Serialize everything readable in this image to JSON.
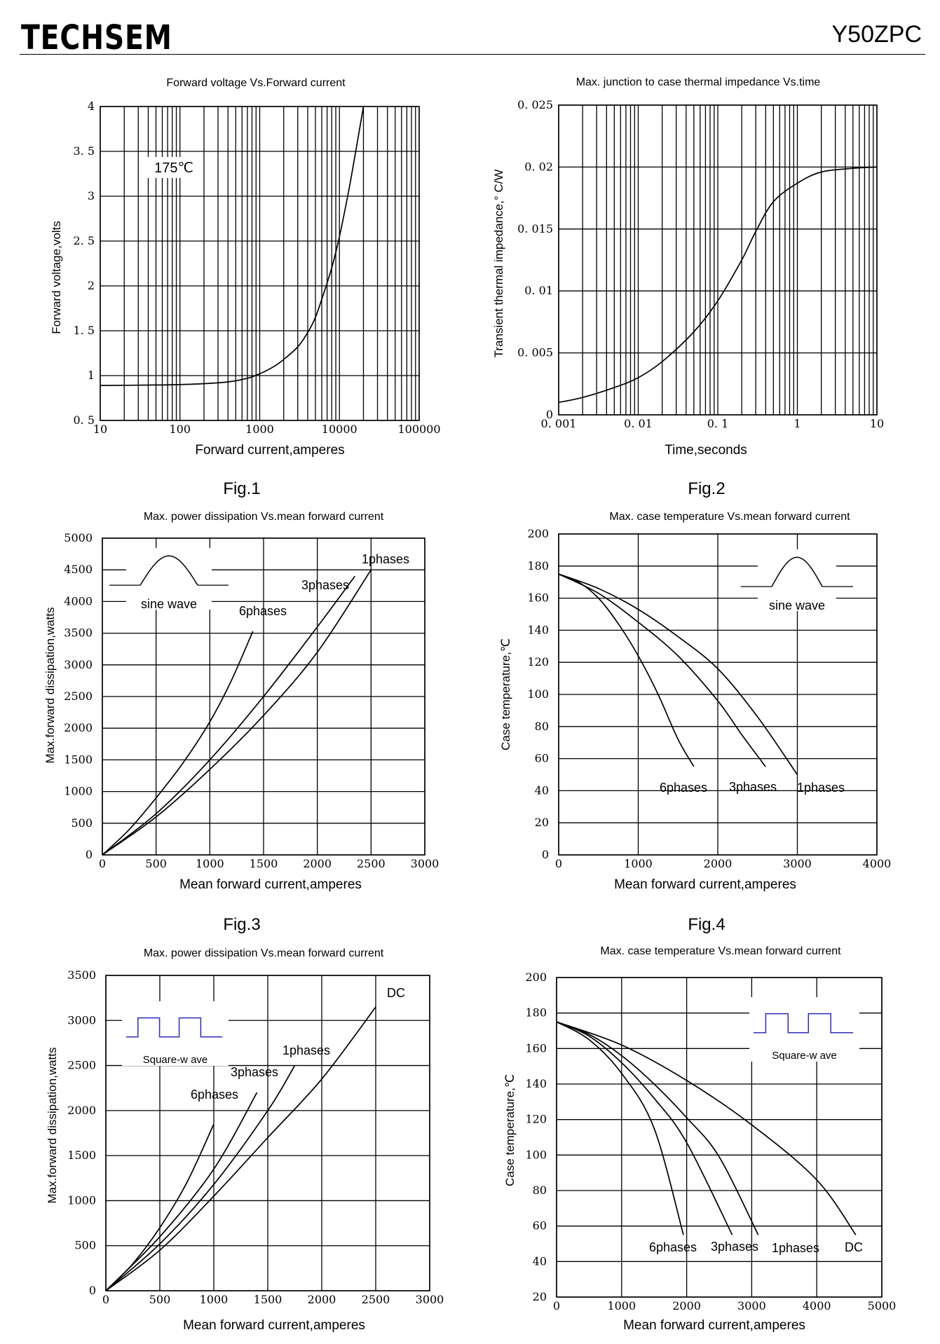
{
  "header": {
    "brand": "TECHSEM",
    "part_number": "Y50ZPC"
  },
  "figures": [
    "Fig.1",
    "Fig.2",
    "Fig.3",
    "Fig.4"
  ],
  "chart_data": [
    {
      "type": "line",
      "title": "Forward voltage Vs.Forward current",
      "xlabel": "Forward current,amperes",
      "ylabel": "Forward voltage,volts",
      "xscale": "log",
      "xlim": [
        10,
        100000
      ],
      "ylim": [
        0.5,
        4
      ],
      "xticks": [
        10,
        100,
        1000,
        10000,
        100000
      ],
      "xtick_labels": [
        "10",
        "100",
        "1000",
        "10000",
        "100000"
      ],
      "yticks": [
        0.5,
        1,
        1.5,
        2,
        2.5,
        3,
        3.5,
        4
      ],
      "ytick_labels": [
        "0. 5",
        "1",
        "1. 5",
        "2",
        "2. 5",
        "3",
        "3. 5",
        "4"
      ],
      "grid": true,
      "annotations": [
        {
          "text": "175℃",
          "x": 25,
          "y": 3.75
        }
      ],
      "series": [
        {
          "x": [
            10,
            50,
            100,
            200,
            400,
            700,
            1000,
            1500,
            2000,
            3000,
            4000,
            5000,
            6000,
            8000,
            10000,
            13000,
            16000,
            20000
          ],
          "y": [
            0.89,
            0.895,
            0.9,
            0.91,
            0.93,
            0.97,
            1.02,
            1.1,
            1.18,
            1.32,
            1.48,
            1.65,
            1.85,
            2.2,
            2.55,
            3.05,
            3.5,
            4.0
          ]
        }
      ]
    },
    {
      "type": "line",
      "title": "Max. junction to case thermal impedance Vs.time",
      "xlabel": "Time,seconds",
      "ylabel": "Transient thermal impedance,° C/W",
      "xscale": "log",
      "xlim": [
        0.001,
        10
      ],
      "ylim": [
        0,
        0.025
      ],
      "xticks": [
        0.001,
        0.01,
        0.1,
        1,
        10
      ],
      "xtick_labels": [
        "0. 001",
        "0. 01",
        "0. 1",
        "1",
        "10"
      ],
      "yticks": [
        0,
        0.005,
        0.01,
        0.015,
        0.02,
        0.025
      ],
      "ytick_labels": [
        "0",
        "0. 005",
        "0. 01",
        "0. 015",
        "0. 02",
        "0. 025"
      ],
      "grid": true,
      "series": [
        {
          "x": [
            0.001,
            0.002,
            0.005,
            0.01,
            0.02,
            0.05,
            0.1,
            0.2,
            0.3,
            0.5,
            1,
            2,
            5,
            10
          ],
          "y": [
            0.001,
            0.0014,
            0.0022,
            0.003,
            0.0043,
            0.0067,
            0.0092,
            0.0125,
            0.0148,
            0.0172,
            0.0187,
            0.0196,
            0.0199,
            0.02
          ]
        }
      ]
    },
    {
      "type": "line",
      "title": "Max. power dissipation Vs.mean forward current",
      "xlabel": "Mean forward current,amperes",
      "ylabel": "Max.forward dissipation,watts",
      "xlim": [
        0,
        3000
      ],
      "ylim": [
        0,
        5000
      ],
      "xticks": [
        0,
        500,
        1000,
        1500,
        2000,
        2500,
        3000
      ],
      "yticks": [
        0,
        500,
        1000,
        1500,
        2000,
        2500,
        3000,
        3500,
        4000,
        4500,
        5000
      ],
      "grid": true,
      "inset": {
        "label": "sine wave",
        "shape": "sine"
      },
      "series": [
        {
          "name": "6phases",
          "x": [
            0,
            250,
            500,
            750,
            1000,
            1200,
            1400
          ],
          "y": [
            0,
            400,
            900,
            1450,
            2100,
            2750,
            3530
          ]
        },
        {
          "name": "3phases",
          "x": [
            0,
            500,
            1000,
            1500,
            2000,
            2350
          ],
          "y": [
            0,
            650,
            1500,
            2500,
            3600,
            4400
          ]
        },
        {
          "name": "1phases",
          "x": [
            0,
            500,
            1000,
            1500,
            2000,
            2500
          ],
          "y": [
            0,
            600,
            1350,
            2200,
            3200,
            4500
          ]
        }
      ]
    },
    {
      "type": "line",
      "title": "Max. case temperature Vs.mean forward current",
      "xlabel": "Mean forward current,amperes",
      "ylabel": "Case temperature,℃",
      "xlim": [
        0,
        4000
      ],
      "ylim": [
        0,
        200
      ],
      "xticks": [
        0,
        1000,
        2000,
        3000,
        4000
      ],
      "yticks": [
        0,
        20,
        40,
        60,
        80,
        100,
        120,
        140,
        160,
        180,
        200
      ],
      "grid": true,
      "inset": {
        "label": "sine wave",
        "shape": "sine"
      },
      "series": [
        {
          "name": "6phases",
          "x": [
            0,
            250,
            500,
            750,
            1000,
            1250,
            1500,
            1700
          ],
          "y": [
            175,
            170,
            160,
            144,
            124,
            100,
            72,
            55
          ]
        },
        {
          "name": "3phases",
          "x": [
            0,
            500,
            1000,
            1500,
            2000,
            2300,
            2600
          ],
          "y": [
            175,
            163,
            145,
            124,
            96,
            75,
            55
          ]
        },
        {
          "name": "1phases",
          "x": [
            0,
            500,
            1000,
            1500,
            2000,
            2500,
            3000
          ],
          "y": [
            175,
            166,
            153,
            136,
            116,
            86,
            50
          ]
        }
      ]
    },
    {
      "type": "line",
      "title": "Max. power dissipation Vs.mean forward current",
      "xlabel": "Mean forward current,amperes",
      "ylabel": "Max.forward dissipation,watts",
      "xlim": [
        0,
        3000
      ],
      "ylim": [
        0,
        3500
      ],
      "xticks": [
        0,
        500,
        1000,
        1500,
        2000,
        2500,
        3000
      ],
      "yticks": [
        0,
        500,
        1000,
        1500,
        2000,
        2500,
        3000,
        3500
      ],
      "grid": true,
      "inset": {
        "label": "Square-w ave",
        "shape": "square"
      },
      "series": [
        {
          "name": "6phases",
          "x": [
            0,
            250,
            500,
            750,
            1000
          ],
          "y": [
            0,
            300,
            700,
            1200,
            1850
          ]
        },
        {
          "name": "3phases",
          "x": [
            0,
            500,
            1000,
            1400
          ],
          "y": [
            0,
            600,
            1350,
            2200
          ]
        },
        {
          "name": "1phases",
          "x": [
            0,
            500,
            1000,
            1500,
            1750
          ],
          "y": [
            0,
            520,
            1180,
            2000,
            2500
          ]
        },
        {
          "name": "DC",
          "x": [
            0,
            500,
            1000,
            1500,
            2000,
            2500
          ],
          "y": [
            0,
            450,
            1050,
            1700,
            2350,
            3150
          ]
        }
      ]
    },
    {
      "type": "line",
      "title": "Max. case temperature Vs.mean forward current",
      "xlabel": "Mean forward current,amperes",
      "ylabel": "Case temperature,℃",
      "xlim": [
        0,
        5000
      ],
      "ylim": [
        20,
        200
      ],
      "xticks": [
        0,
        1000,
        2000,
        3000,
        4000,
        5000
      ],
      "yticks": [
        20,
        40,
        60,
        80,
        100,
        120,
        140,
        160,
        180,
        200
      ],
      "grid": true,
      "inset": {
        "label": "Square-w ave",
        "shape": "square"
      },
      "series": [
        {
          "name": "6phases",
          "x": [
            0,
            500,
            1000,
            1500,
            1950
          ],
          "y": [
            175,
            165,
            146,
            115,
            55
          ]
        },
        {
          "name": "3phases",
          "x": [
            0,
            500,
            1000,
            1500,
            2000,
            2700
          ],
          "y": [
            175,
            167,
            152,
            132,
            107,
            55
          ]
        },
        {
          "name": "1phases",
          "x": [
            0,
            500,
            1000,
            1500,
            2000,
            2500,
            3100
          ],
          "y": [
            175,
            168,
            156,
            140,
            121,
            99,
            55
          ]
        },
        {
          "name": "DC",
          "x": [
            0,
            1000,
            2000,
            3000,
            4000,
            4600
          ],
          "y": [
            175,
            162,
            142,
            117,
            86,
            55
          ]
        }
      ]
    }
  ]
}
